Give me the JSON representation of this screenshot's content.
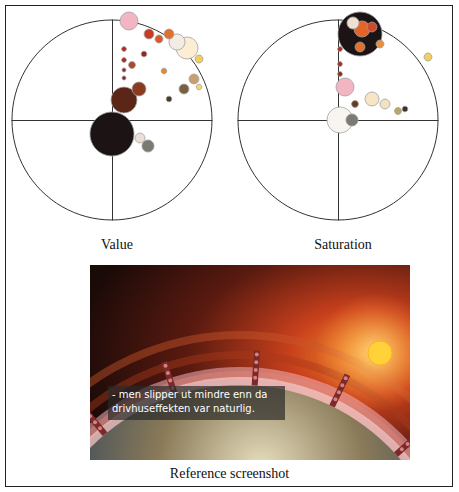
{
  "chart_data": [
    {
      "type": "scatter",
      "title": "Value",
      "xlim": [
        -1,
        1
      ],
      "ylim": [
        -1,
        1
      ],
      "tick_labels": false,
      "grid": false,
      "x": [
        0.0,
        0.12,
        0.17,
        0.75,
        0.65,
        0.27,
        0.36,
        0.28,
        0.37,
        0.57,
        0.47,
        0.82,
        0.72,
        0.87,
        0.87,
        0.12,
        0.12,
        0.12,
        0.12,
        0.32,
        0.52,
        0.57,
        0.2
      ],
      "values": [
        -0.14,
        0.2,
        0.99,
        0.72,
        0.78,
        0.31,
        -0.26,
        -0.18,
        0.86,
        0.86,
        0.81,
        0.41,
        0.31,
        0.61,
        0.33,
        0.71,
        0.6,
        0.5,
        0.42,
        0.66,
        0.49,
        0.21,
        0.55
      ],
      "sizes": [
        121,
        42,
        20,
        30,
        16,
        12,
        9,
        6,
        6,
        6,
        4,
        6,
        6,
        4,
        2,
        1.5,
        1.5,
        1,
        1,
        2,
        2,
        2,
        3
      ],
      "colors": [
        "#1c1414",
        "#5b2616",
        "#f2b6c2",
        "#fbeed4",
        "#f3ece2",
        "#8a3a1e",
        "#7a7a72",
        "#e8e0d8",
        "#c83a22",
        "#e0702a",
        "#d85a28",
        "#c8a070",
        "#7a6040",
        "#f2cf5a",
        "#f0d870",
        "#b02a20",
        "#a82a22",
        "#8a2a20",
        "#7a2a20",
        "#902a1a",
        "#e08a3a",
        "#4a3a2a",
        "#b0462a"
      ]
    },
    {
      "type": "scatter",
      "title": "Saturation",
      "xlim": [
        -1,
        1
      ],
      "ylim": [
        -1,
        1
      ],
      "tick_labels": false,
      "grid": false,
      "x": [
        0.22,
        0.02,
        0.07,
        0.34,
        0.24,
        0.14,
        0.15,
        0.22,
        0.42,
        0.34,
        0.9,
        0.47,
        0.6,
        0.67,
        0.02,
        0.02,
        0.02,
        0.17
      ],
      "values": [
        0.86,
        0.0,
        0.33,
        0.21,
        0.91,
        0.0,
        0.97,
        0.73,
        0.76,
        0.93,
        0.63,
        0.16,
        0.09,
        0.11,
        0.71,
        0.56,
        0.46,
        0.16
      ],
      "sizes": [
        121,
        42,
        20,
        12,
        16,
        9,
        9,
        6,
        4,
        6,
        4,
        6,
        3,
        2,
        1.5,
        1.5,
        1.5,
        3
      ],
      "colors": [
        "#1c1414",
        "#f8f4f0",
        "#f2b6c2",
        "#f6e6c6",
        "#e4632a",
        "#7a7a72",
        "#f0e0d0",
        "#e07030",
        "#e89040",
        "#d04a2a",
        "#f2d060",
        "#f3e2c0",
        "#b8a860",
        "#3a3030",
        "#b02a20",
        "#a82a22",
        "#8a2a20",
        "#6a3a20"
      ]
    }
  ],
  "screenshot": {
    "subtitle": [
      "- men slipper ut mindre enn da",
      "drivhuseffekten var naturlig."
    ],
    "caption": "Reference screenshot"
  }
}
